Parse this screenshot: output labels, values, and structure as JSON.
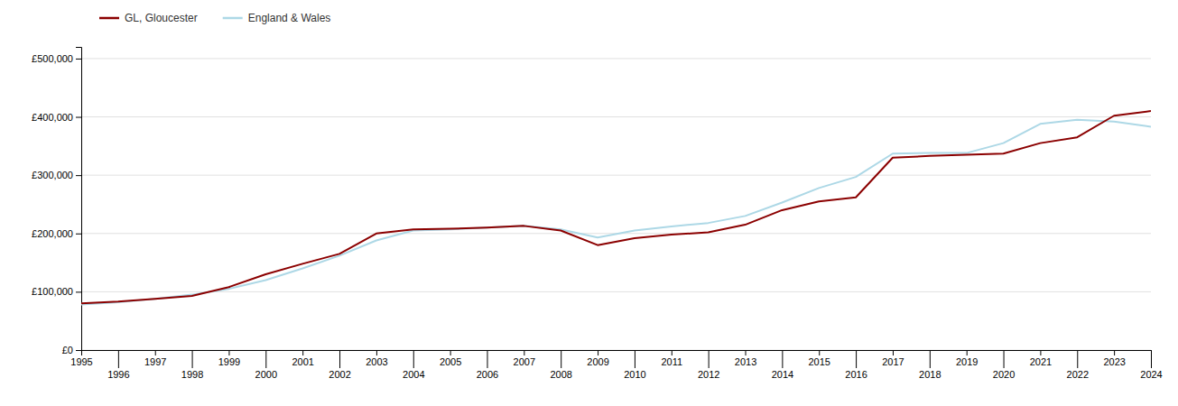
{
  "chart_data": {
    "type": "line",
    "x": [
      1995,
      1996,
      1997,
      1998,
      1999,
      2000,
      2001,
      2002,
      2003,
      2004,
      2005,
      2006,
      2007,
      2008,
      2009,
      2010,
      2011,
      2012,
      2013,
      2014,
      2015,
      2016,
      2017,
      2018,
      2019,
      2020,
      2021,
      2022,
      2023,
      2024
    ],
    "series": [
      {
        "name": "GL, Gloucester",
        "color": "#8B0000",
        "values": [
          80000,
          83000,
          88000,
          93000,
          108000,
          130000,
          148000,
          165000,
          200000,
          207000,
          208000,
          210000,
          213000,
          205000,
          180000,
          192000,
          198000,
          202000,
          215000,
          240000,
          255000,
          262000,
          330000,
          333000,
          335000,
          337000,
          355000,
          365000,
          402000,
          410000
        ]
      },
      {
        "name": "England & Wales",
        "color": "#ADD8E6",
        "values": [
          78000,
          82000,
          88000,
          95000,
          105000,
          120000,
          140000,
          162000,
          188000,
          205000,
          207000,
          210000,
          213000,
          207000,
          193000,
          205000,
          212000,
          218000,
          230000,
          253000,
          278000,
          297000,
          337000,
          338000,
          338000,
          355000,
          388000,
          395000,
          392000,
          383000
        ]
      }
    ],
    "xlim": [
      1995,
      2024
    ],
    "xticks": [
      1995,
      1996,
      1997,
      1998,
      1999,
      2000,
      2001,
      2002,
      2003,
      2004,
      2005,
      2006,
      2007,
      2008,
      2009,
      2010,
      2011,
      2012,
      2013,
      2014,
      2015,
      2016,
      2017,
      2018,
      2019,
      2020,
      2021,
      2022,
      2023,
      2024
    ],
    "ylim": [
      0,
      520000
    ],
    "yticks": [
      {
        "value": 0,
        "label": "£0"
      },
      {
        "value": 100000,
        "label": "£100,000"
      },
      {
        "value": 200000,
        "label": "£200,000"
      },
      {
        "value": 300000,
        "label": "£300,000"
      },
      {
        "value": 400000,
        "label": "£400,000"
      },
      {
        "value": 500000,
        "label": "£500,000"
      }
    ],
    "grid": true,
    "legend": "top left"
  }
}
